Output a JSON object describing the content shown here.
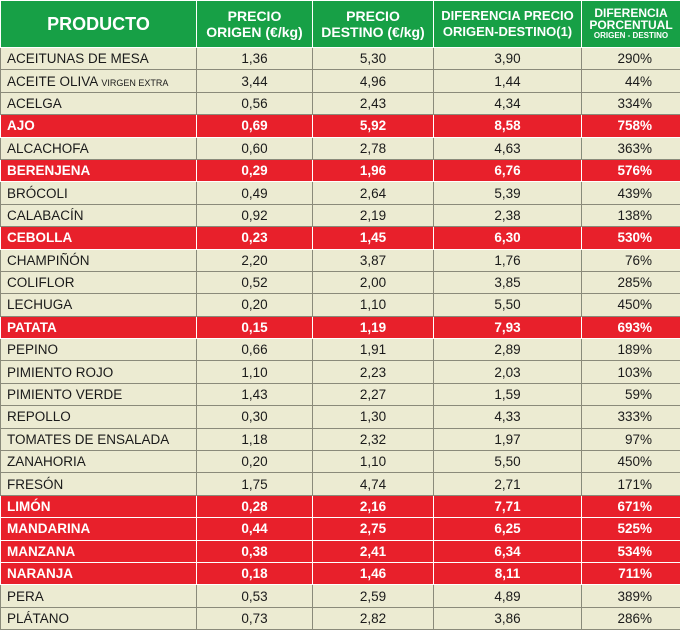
{
  "table": {
    "headers": {
      "producto": "PRODUCTO",
      "origen_l1": "PRECIO",
      "origen_l2": "ORIGEN (€/kg)",
      "destino_l1": "PRECIO",
      "destino_l2": "DESTINO (€/kg)",
      "diferencia_l1": "DIFERENCIA PRECIO",
      "diferencia_l2": "ORIGEN-DESTINO(1)",
      "pct_l1": "DIFERENCIA",
      "pct_l2": "PORCENTUAL",
      "pct_l3": "ORIGEN - DESTINO"
    },
    "colors": {
      "header_bg": "#17a046",
      "row_bg": "#ecebd2",
      "highlight_bg": "#e8202b"
    },
    "rows": [
      {
        "producto": "ACEITUNAS DE MESA",
        "suffix": "",
        "origen": "1,36",
        "destino": "5,30",
        "diferencia": "3,90",
        "pct": "290%",
        "highlight": false
      },
      {
        "producto": "ACEITE OLIVA",
        "suffix": "VIRGEN EXTRA",
        "origen": "3,44",
        "destino": "4,96",
        "diferencia": "1,44",
        "pct": "44%",
        "highlight": false
      },
      {
        "producto": "ACELGA",
        "suffix": "",
        "origen": "0,56",
        "destino": "2,43",
        "diferencia": "4,34",
        "pct": "334%",
        "highlight": false
      },
      {
        "producto": "AJO",
        "suffix": "",
        "origen": "0,69",
        "destino": "5,92",
        "diferencia": "8,58",
        "pct": "758%",
        "highlight": true
      },
      {
        "producto": "ALCACHOFA",
        "suffix": "",
        "origen": "0,60",
        "destino": "2,78",
        "diferencia": "4,63",
        "pct": "363%",
        "highlight": false
      },
      {
        "producto": "BERENJENA",
        "suffix": "",
        "origen": "0,29",
        "destino": "1,96",
        "diferencia": "6,76",
        "pct": "576%",
        "highlight": true
      },
      {
        "producto": "BRÓCOLI",
        "suffix": "",
        "origen": "0,49",
        "destino": "2,64",
        "diferencia": "5,39",
        "pct": "439%",
        "highlight": false
      },
      {
        "producto": "CALABACÍN",
        "suffix": "",
        "origen": "0,92",
        "destino": "2,19",
        "diferencia": "2,38",
        "pct": "138%",
        "highlight": false
      },
      {
        "producto": "CEBOLLA",
        "suffix": "",
        "origen": "0,23",
        "destino": "1,45",
        "diferencia": "6,30",
        "pct": "530%",
        "highlight": true
      },
      {
        "producto": "CHAMPIÑÓN",
        "suffix": "",
        "origen": "2,20",
        "destino": "3,87",
        "diferencia": "1,76",
        "pct": "76%",
        "highlight": false
      },
      {
        "producto": "COLIFLOR",
        "suffix": "",
        "origen": "0,52",
        "destino": "2,00",
        "diferencia": "3,85",
        "pct": "285%",
        "highlight": false
      },
      {
        "producto": "LECHUGA",
        "suffix": "",
        "origen": "0,20",
        "destino": "1,10",
        "diferencia": "5,50",
        "pct": "450%",
        "highlight": false
      },
      {
        "producto": "PATATA",
        "suffix": "",
        "origen": "0,15",
        "destino": "1,19",
        "diferencia": "7,93",
        "pct": "693%",
        "highlight": true
      },
      {
        "producto": "PEPINO",
        "suffix": "",
        "origen": "0,66",
        "destino": "1,91",
        "diferencia": "2,89",
        "pct": "189%",
        "highlight": false
      },
      {
        "producto": "PIMIENTO ROJO",
        "suffix": "",
        "origen": "1,10",
        "destino": "2,23",
        "diferencia": "2,03",
        "pct": "103%",
        "highlight": false
      },
      {
        "producto": "PIMIENTO VERDE",
        "suffix": "",
        "origen": "1,43",
        "destino": "2,27",
        "diferencia": "1,59",
        "pct": "59%",
        "highlight": false
      },
      {
        "producto": "REPOLLO",
        "suffix": "",
        "origen": "0,30",
        "destino": "1,30",
        "diferencia": "4,33",
        "pct": "333%",
        "highlight": false
      },
      {
        "producto": "TOMATES DE ENSALADA",
        "suffix": "",
        "origen": "1,18",
        "destino": "2,32",
        "diferencia": "1,97",
        "pct": "97%",
        "highlight": false
      },
      {
        "producto": "ZANAHORIA",
        "suffix": "",
        "origen": "0,20",
        "destino": "1,10",
        "diferencia": "5,50",
        "pct": "450%",
        "highlight": false
      },
      {
        "producto": "FRESÓN",
        "suffix": "",
        "origen": "1,75",
        "destino": "4,74",
        "diferencia": "2,71",
        "pct": "171%",
        "highlight": false
      },
      {
        "producto": "LIMÓN",
        "suffix": "",
        "origen": "0,28",
        "destino": "2,16",
        "diferencia": "7,71",
        "pct": "671%",
        "highlight": true
      },
      {
        "producto": "MANDARINA",
        "suffix": "",
        "origen": "0,44",
        "destino": "2,75",
        "diferencia": "6,25",
        "pct": "525%",
        "highlight": true
      },
      {
        "producto": "MANZANA",
        "suffix": "",
        "origen": "0,38",
        "destino": "2,41",
        "diferencia": "6,34",
        "pct": "534%",
        "highlight": true
      },
      {
        "producto": "NARANJA",
        "suffix": "",
        "origen": "0,18",
        "destino": "1,46",
        "diferencia": "8,11",
        "pct": "711%",
        "highlight": true
      },
      {
        "producto": "PERA",
        "suffix": "",
        "origen": "0,53",
        "destino": "2,59",
        "diferencia": "4,89",
        "pct": "389%",
        "highlight": false
      },
      {
        "producto": "PLÁTANO",
        "suffix": "",
        "origen": "0,73",
        "destino": "2,82",
        "diferencia": "3,86",
        "pct": "286%",
        "highlight": false
      }
    ]
  }
}
